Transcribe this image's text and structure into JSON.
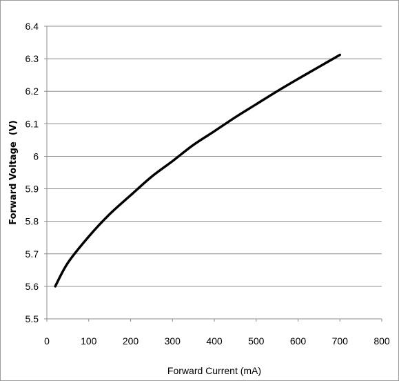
{
  "chart_data": {
    "type": "line",
    "title": "",
    "xlabel": "Forward Current (mA)",
    "ylabel": "Forward Voltage  (V)",
    "xlim": [
      0,
      800
    ],
    "ylim": [
      5.5,
      6.4
    ],
    "x_ticks": [
      "0",
      "100",
      "200",
      "300",
      "400",
      "500",
      "600",
      "700",
      "800"
    ],
    "y_ticks": [
      "5.5",
      "5.6",
      "5.7",
      "5.8",
      "5.9",
      "6",
      "6.1",
      "6.2",
      "6.3",
      "6.4"
    ],
    "grid": "horizontal",
    "legend": "none",
    "series": [
      {
        "color": "#000000",
        "x": [
          20,
          50,
          100,
          150,
          200,
          250,
          300,
          350,
          400,
          450,
          500,
          550,
          600,
          650,
          700
        ],
        "y": [
          5.6,
          5.672,
          5.753,
          5.822,
          5.88,
          5.937,
          5.985,
          6.035,
          6.077,
          6.12,
          6.16,
          6.2,
          6.238,
          6.275,
          6.312
        ]
      }
    ]
  }
}
